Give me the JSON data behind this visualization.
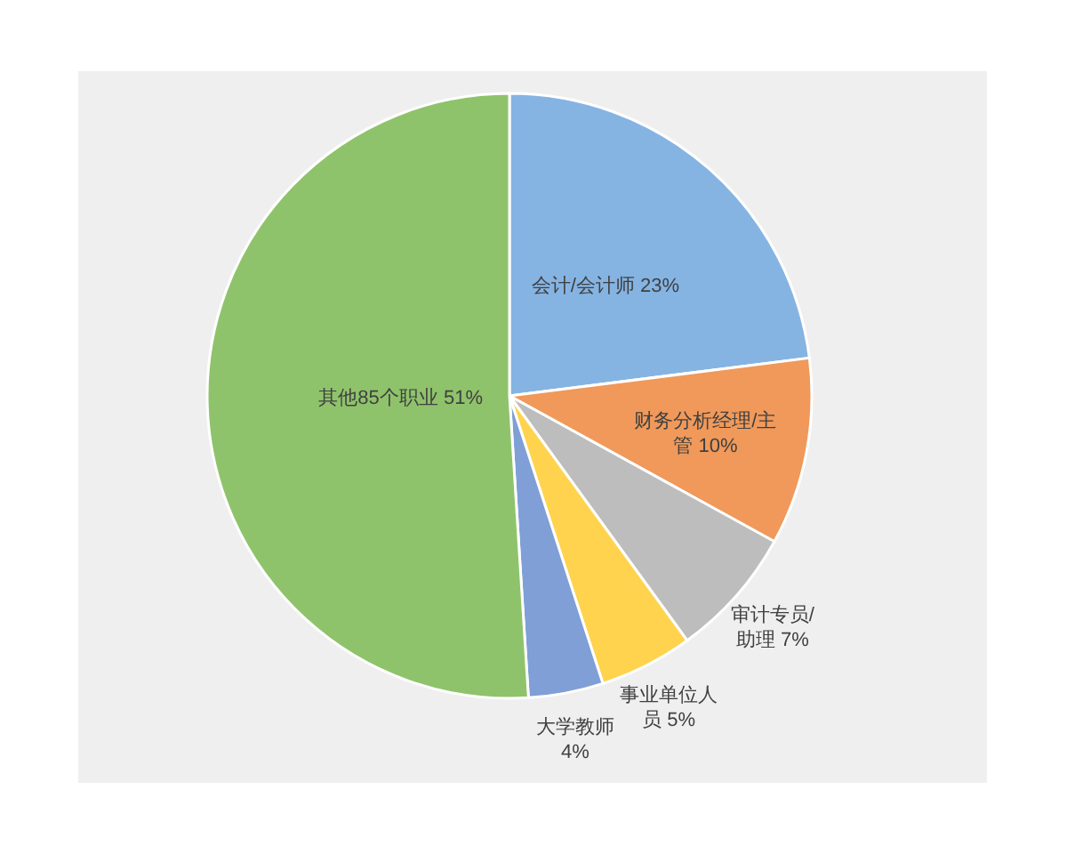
{
  "chart_data": {
    "type": "pie",
    "categories": [
      "会计/会计师",
      "财务分析经理/主管",
      "审计专员/助理",
      "事业单位人员",
      "大学教师",
      "其他85个职业"
    ],
    "values": [
      23,
      10,
      7,
      5,
      4,
      51
    ],
    "value_labels": [
      "23%",
      "10%",
      "7%",
      "5%",
      "4%",
      "51%"
    ],
    "colors": [
      "#85b4e3",
      "#f0995a",
      "#bdbdbd",
      "#ffd34d",
      "#7f9fd6",
      "#8fc36b"
    ]
  }
}
